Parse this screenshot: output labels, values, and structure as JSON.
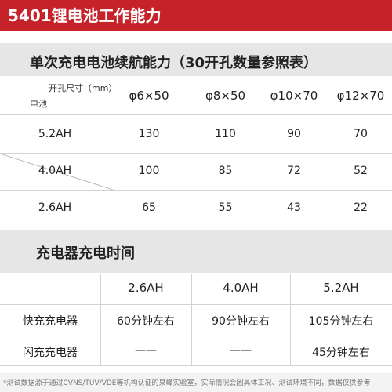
{
  "header": {
    "title": "5401锂电池工作能力"
  },
  "section1": {
    "title": "单次充电电池续航能力（30开孔数量参照表）",
    "corner_top": "开孔尺寸（mm）",
    "corner_bottom": "电池",
    "columns": [
      "φ6×50",
      "φ8×50",
      "φ10×70",
      "φ12×70"
    ],
    "rows": [
      {
        "label": "5.2AH",
        "values": [
          "130",
          "110",
          "90",
          "70"
        ]
      },
      {
        "label": "4.0AH",
        "values": [
          "100",
          "85",
          "72",
          "52"
        ]
      },
      {
        "label": "2.6AH",
        "values": [
          "65",
          "55",
          "43",
          "22"
        ]
      }
    ]
  },
  "section2": {
    "title": "充电器充电时间",
    "columns": [
      "2.6AH",
      "4.0AH",
      "5.2AH"
    ],
    "rows": [
      {
        "label": "快充充电器",
        "values": [
          "60分钟左右",
          "90分钟左右",
          "105分钟左右"
        ]
      },
      {
        "label": "闪充充电器",
        "values": [
          "——",
          "——",
          "45分钟左右"
        ]
      }
    ]
  },
  "footnote": "*测试数据源于通过CVNS/TUV/VDE等机构认证的泉峰实验室，实际情况会因具体工况、测试环境不同，数据仅供参考"
}
